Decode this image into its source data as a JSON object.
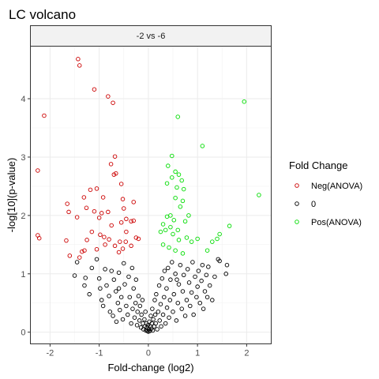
{
  "chart_data": {
    "type": "scatter",
    "title": "LC volcano",
    "facet_label": "-2 vs -6",
    "xlabel": "Fold-change (log2)",
    "ylabel": "-log[10](p-value)",
    "xlim": [
      -2.4,
      2.5
    ],
    "ylim": [
      -0.2,
      4.9
    ],
    "xticks": [
      -2,
      -1,
      0,
      1,
      2
    ],
    "yticks": [
      0,
      1,
      2,
      3,
      4
    ],
    "grid": true,
    "marker": "open-circle",
    "legend": {
      "title": "Fold Change",
      "placement": "right",
      "entries": [
        "Neg(ANOVA)",
        "0",
        "Pos(ANOVA)"
      ]
    },
    "series": [
      {
        "name": "Neg(ANOVA)",
        "color": "#cc0000",
        "points": [
          [
            -1.43,
            4.68
          ],
          [
            -1.4,
            4.57
          ],
          [
            -1.1,
            4.16
          ],
          [
            -0.82,
            4.04
          ],
          [
            -0.72,
            3.93
          ],
          [
            -2.12,
            3.71
          ],
          [
            -0.68,
            3.01
          ],
          [
            -0.76,
            2.88
          ],
          [
            -0.66,
            2.72
          ],
          [
            -0.7,
            2.7
          ],
          [
            -0.55,
            2.54
          ],
          [
            -2.25,
            2.77
          ],
          [
            -1.18,
            2.44
          ],
          [
            -1.05,
            2.46
          ],
          [
            -1.31,
            2.31
          ],
          [
            -0.92,
            2.31
          ],
          [
            -0.52,
            2.28
          ],
          [
            -0.3,
            2.23
          ],
          [
            -1.65,
            2.2
          ],
          [
            -0.5,
            2.12
          ],
          [
            -1.26,
            2.13
          ],
          [
            -1.1,
            2.07
          ],
          [
            -0.95,
            2.04
          ],
          [
            -0.82,
            2.06
          ],
          [
            -1.45,
            1.97
          ],
          [
            -0.45,
            1.94
          ],
          [
            -0.35,
            1.9
          ],
          [
            -0.3,
            1.91
          ],
          [
            -1.62,
            2.06
          ],
          [
            -1.0,
            1.96
          ],
          [
            -0.55,
            1.88
          ],
          [
            -0.75,
            1.83
          ],
          [
            -1.15,
            1.72
          ],
          [
            -0.98,
            1.67
          ],
          [
            -0.45,
            1.72
          ],
          [
            -0.25,
            1.62
          ],
          [
            -0.8,
            1.59
          ],
          [
            -0.58,
            1.55
          ],
          [
            -1.25,
            1.58
          ],
          [
            -0.9,
            1.63
          ],
          [
            -1.67,
            1.57
          ],
          [
            -0.52,
            1.43
          ],
          [
            -0.68,
            1.48
          ],
          [
            -0.35,
            1.48
          ],
          [
            -1.3,
            1.4
          ],
          [
            -1.05,
            1.42
          ],
          [
            -1.6,
            1.31
          ],
          [
            -2.25,
            1.66
          ],
          [
            -2.22,
            1.61
          ],
          [
            -0.6,
            1.37
          ],
          [
            -1.4,
            1.28
          ],
          [
            -0.2,
            1.6
          ],
          [
            -1.35,
            1.38
          ],
          [
            -0.46,
            1.55
          ],
          [
            -0.88,
            1.5
          ]
        ]
      },
      {
        "name": "0",
        "color": "#000000",
        "points": [
          [
            -1.45,
            1.2
          ],
          [
            -1.5,
            0.97
          ],
          [
            -1.28,
            0.93
          ],
          [
            -1.3,
            0.8
          ],
          [
            -1.2,
            0.65
          ],
          [
            -1.15,
            1.1
          ],
          [
            -1.05,
            1.25
          ],
          [
            -1.0,
            0.92
          ],
          [
            -0.98,
            0.75
          ],
          [
            -0.95,
            0.55
          ],
          [
            -0.92,
            0.45
          ],
          [
            -0.88,
            1.08
          ],
          [
            -0.85,
            0.8
          ],
          [
            -0.8,
            0.62
          ],
          [
            -0.78,
            0.35
          ],
          [
            -0.75,
            1.05
          ],
          [
            -0.72,
            0.28
          ],
          [
            -0.7,
            0.9
          ],
          [
            -0.66,
            0.7
          ],
          [
            -0.65,
            0.18
          ],
          [
            -0.62,
            0.5
          ],
          [
            -0.6,
            1.02
          ],
          [
            -0.58,
            0.38
          ],
          [
            -0.55,
            0.6
          ],
          [
            -0.52,
            0.22
          ],
          [
            -0.5,
            1.18
          ],
          [
            -0.48,
            0.82
          ],
          [
            -0.45,
            0.45
          ],
          [
            -0.42,
            0.3
          ],
          [
            -0.4,
            0.95
          ],
          [
            -0.38,
            0.6
          ],
          [
            -0.35,
            0.15
          ],
          [
            -0.33,
            1.1
          ],
          [
            -0.32,
            0.4
          ],
          [
            -0.3,
            0.75
          ],
          [
            -0.28,
            0.25
          ],
          [
            -0.26,
            0.5
          ],
          [
            -0.25,
            0.9
          ],
          [
            -0.23,
            0.12
          ],
          [
            -0.22,
            0.35
          ],
          [
            -0.2,
            0.62
          ],
          [
            -0.18,
            0.2
          ],
          [
            -0.17,
            0.45
          ],
          [
            -0.15,
            0.08
          ],
          [
            -0.14,
            0.3
          ],
          [
            -0.12,
            0.55
          ],
          [
            -0.11,
            0.15
          ],
          [
            -0.1,
            0.05
          ],
          [
            -0.08,
            0.22
          ],
          [
            -0.07,
            0.1
          ],
          [
            -0.06,
            0.35
          ],
          [
            -0.05,
            0.03
          ],
          [
            -0.04,
            0.15
          ],
          [
            -0.03,
            0.08
          ],
          [
            -0.02,
            0.02
          ],
          [
            -0.01,
            0.12
          ],
          [
            0.0,
            0.01
          ],
          [
            0.01,
            0.05
          ],
          [
            0.02,
            0.18
          ],
          [
            0.03,
            0.02
          ],
          [
            0.04,
            0.1
          ],
          [
            0.05,
            0.28
          ],
          [
            0.06,
            0.06
          ],
          [
            0.07,
            0.15
          ],
          [
            0.08,
            0.4
          ],
          [
            0.09,
            0.03
          ],
          [
            0.1,
            0.22
          ],
          [
            0.12,
            0.1
          ],
          [
            0.13,
            0.55
          ],
          [
            0.14,
            0.3
          ],
          [
            0.15,
            0.15
          ],
          [
            0.16,
            0.65
          ],
          [
            0.18,
            0.05
          ],
          [
            0.2,
            0.35
          ],
          [
            0.22,
            0.8
          ],
          [
            0.23,
            0.2
          ],
          [
            0.25,
            0.48
          ],
          [
            0.26,
            0.1
          ],
          [
            0.28,
            0.92
          ],
          [
            0.3,
            0.3
          ],
          [
            0.32,
            0.6
          ],
          [
            0.33,
            1.05
          ],
          [
            0.35,
            0.15
          ],
          [
            0.37,
            0.75
          ],
          [
            0.38,
            0.42
          ],
          [
            0.4,
            1.1
          ],
          [
            0.42,
            0.25
          ],
          [
            0.44,
            0.55
          ],
          [
            0.45,
            0.9
          ],
          [
            0.48,
            1.2
          ],
          [
            0.5,
            0.35
          ],
          [
            0.52,
            0.65
          ],
          [
            0.55,
            1.0
          ],
          [
            0.57,
            0.2
          ],
          [
            0.6,
            0.5
          ],
          [
            0.62,
            0.82
          ],
          [
            0.65,
            1.15
          ],
          [
            0.68,
            0.4
          ],
          [
            0.7,
            0.7
          ],
          [
            0.72,
            0.98
          ],
          [
            0.75,
            0.28
          ],
          [
            0.78,
            0.55
          ],
          [
            0.8,
            1.08
          ],
          [
            0.83,
            0.85
          ],
          [
            0.85,
            0.45
          ],
          [
            0.88,
            0.68
          ],
          [
            0.9,
            1.2
          ],
          [
            0.92,
            0.3
          ],
          [
            0.95,
            0.95
          ],
          [
            0.98,
            0.6
          ],
          [
            1.0,
            0.78
          ],
          [
            1.02,
            1.05
          ],
          [
            1.05,
            0.5
          ],
          [
            1.08,
            0.88
          ],
          [
            1.1,
            1.15
          ],
          [
            1.12,
            0.4
          ],
          [
            1.15,
            0.7
          ],
          [
            1.18,
            0.98
          ],
          [
            1.2,
            0.6
          ],
          [
            1.22,
            1.12
          ],
          [
            1.25,
            0.8
          ],
          [
            1.3,
            0.55
          ],
          [
            1.35,
            0.95
          ],
          [
            1.42,
            1.25
          ],
          [
            1.45,
            1.22
          ],
          [
            1.58,
            1.0
          ],
          [
            1.6,
            1.15
          ],
          [
            -0.6,
            0.75
          ],
          [
            0.58,
            0.9
          ]
        ]
      },
      {
        "name": "Pos(ANOVA)",
        "color": "#00dd00",
        "points": [
          [
            1.95,
            3.95
          ],
          [
            0.6,
            3.69
          ],
          [
            1.1,
            3.19
          ],
          [
            0.48,
            3.02
          ],
          [
            2.25,
            2.35
          ],
          [
            0.4,
            2.85
          ],
          [
            0.55,
            2.75
          ],
          [
            0.62,
            2.7
          ],
          [
            0.68,
            2.6
          ],
          [
            0.48,
            2.65
          ],
          [
            0.38,
            2.55
          ],
          [
            0.72,
            2.45
          ],
          [
            0.58,
            2.48
          ],
          [
            0.55,
            2.3
          ],
          [
            0.7,
            2.25
          ],
          [
            0.65,
            2.15
          ],
          [
            0.45,
            2.0
          ],
          [
            0.82,
            2.0
          ],
          [
            0.38,
            1.98
          ],
          [
            0.52,
            1.92
          ],
          [
            0.75,
            1.9
          ],
          [
            0.3,
            1.85
          ],
          [
            0.45,
            1.8
          ],
          [
            0.6,
            1.75
          ],
          [
            0.35,
            1.75
          ],
          [
            0.25,
            1.72
          ],
          [
            0.5,
            1.68
          ],
          [
            0.78,
            1.62
          ],
          [
            0.62,
            1.58
          ],
          [
            0.88,
            1.55
          ],
          [
            1.65,
            1.82
          ],
          [
            1.4,
            1.6
          ],
          [
            1.3,
            1.55
          ],
          [
            1.45,
            1.68
          ],
          [
            1.0,
            1.6
          ],
          [
            1.2,
            1.4
          ],
          [
            0.42,
            1.45
          ],
          [
            0.55,
            1.4
          ],
          [
            0.7,
            1.35
          ],
          [
            0.3,
            1.5
          ]
        ]
      }
    ]
  }
}
